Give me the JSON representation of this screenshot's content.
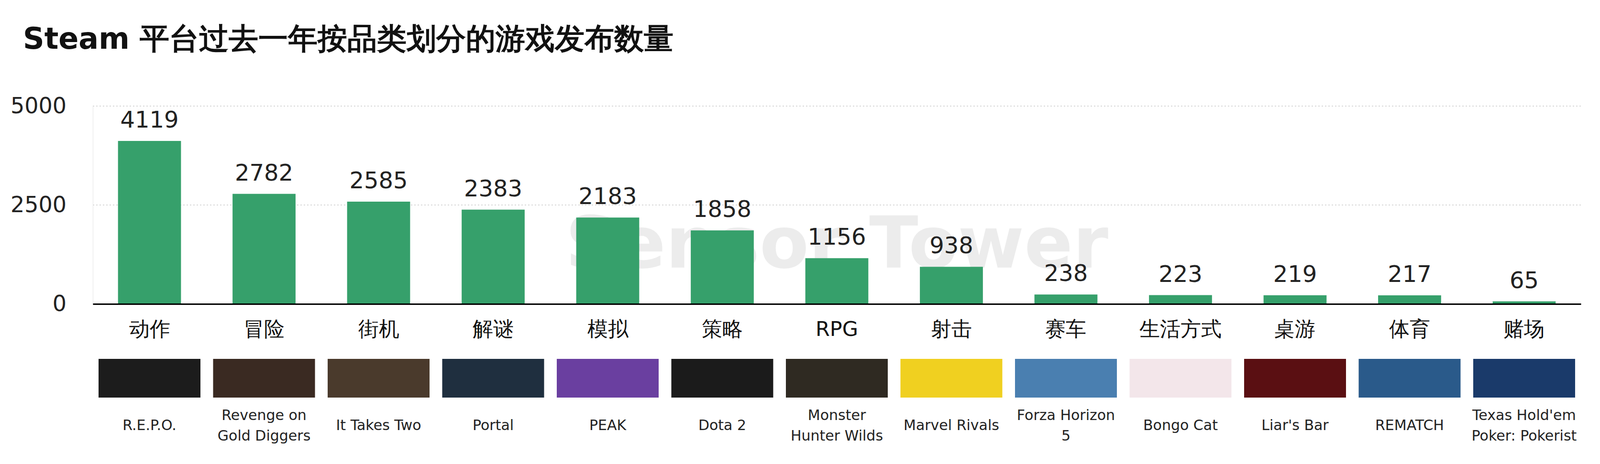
{
  "chart_data": {
    "type": "bar",
    "title": "Steam 平台过去一年按品类划分的游戏发布数量",
    "categories": [
      "动作",
      "冒险",
      "街机",
      "解谜",
      "模拟",
      "策略",
      "RPG",
      "射击",
      "赛车",
      "生活方式",
      "桌游",
      "体育",
      "赌场"
    ],
    "values": [
      4119,
      2782,
      2585,
      2383,
      2183,
      1858,
      1156,
      938,
      238,
      223,
      219,
      217,
      65
    ],
    "annotations": [
      "R.E.P.O.",
      "Revenge on Gold Diggers",
      "It Takes Two",
      "Portal",
      "PEAK",
      "Dota 2",
      "Monster Hunter Wilds",
      "Marvel Rivals",
      "Forza Horizon 5",
      "Bongo Cat",
      "Liar's Bar",
      "REMATCH",
      "Texas Hold'em Poker: Pokerist"
    ],
    "source": "Sensor Tower",
    "color": "#36a06b",
    "ylim": [
      0,
      5000
    ],
    "yticks": [
      0,
      2500,
      5000
    ],
    "grid": true,
    "data_labels": true
  }
}
